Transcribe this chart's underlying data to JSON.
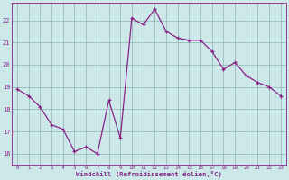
{
  "x": [
    0,
    1,
    2,
    3,
    4,
    5,
    6,
    7,
    8,
    9,
    10,
    11,
    12,
    13,
    14,
    15,
    16,
    17,
    18,
    19,
    20,
    21,
    22,
    23
  ],
  "y": [
    18.9,
    18.6,
    18.1,
    17.3,
    17.1,
    16.1,
    16.3,
    16.0,
    18.4,
    16.7,
    22.1,
    21.8,
    22.5,
    21.5,
    21.2,
    21.1,
    21.1,
    20.6,
    19.8,
    20.1,
    19.5,
    19.2,
    19.0,
    18.6
  ],
  "line_color": "#882288",
  "marker_color": "#882288",
  "bg_color": "#cce8e8",
  "grid_color": "#99bbbb",
  "xlabel": "Windchill (Refroidissement éolien,°C)",
  "xlabel_color": "#882288",
  "tick_color": "#882288",
  "ylim": [
    15.5,
    22.8
  ],
  "xlim": [
    -0.5,
    23.5
  ],
  "yticks": [
    16,
    17,
    18,
    19,
    20,
    21,
    22
  ],
  "xticks": [
    0,
    1,
    2,
    3,
    4,
    5,
    6,
    7,
    8,
    9,
    10,
    11,
    12,
    13,
    14,
    15,
    16,
    17,
    18,
    19,
    20,
    21,
    22,
    23
  ]
}
